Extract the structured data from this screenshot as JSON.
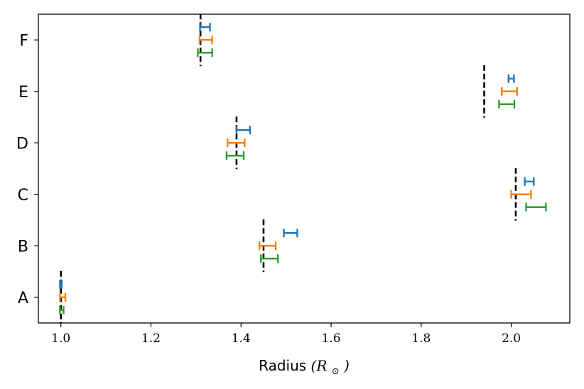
{
  "chart_data": {
    "type": "errorbar",
    "title": "",
    "xlabel": "Radius",
    "xlabel_math": "(R",
    "xlabel_sub": "⊙",
    "xlabel_close": ")",
    "ylabel": "",
    "xlim": [
      0.95,
      2.13
    ],
    "xticks": [
      1.0,
      1.2,
      1.4,
      1.6,
      1.8,
      2.0
    ],
    "xtick_labels": [
      "1.0",
      "1.2",
      "1.4",
      "1.6",
      "1.8",
      "2.0"
    ],
    "categories": [
      "A",
      "B",
      "C",
      "D",
      "E",
      "F"
    ],
    "grid": false,
    "legend": "none",
    "series": [
      {
        "color": "#1f77b4",
        "values": [
          {
            "category": "A",
            "x": 1.0,
            "err": 0.002
          },
          {
            "category": "B",
            "x": 1.51,
            "err": 0.015
          },
          {
            "category": "C",
            "x": 2.04,
            "err": 0.01
          },
          {
            "category": "D",
            "x": 1.405,
            "err": 0.015
          },
          {
            "category": "E",
            "x": 2.0,
            "err": 0.006
          },
          {
            "category": "F",
            "x": 1.32,
            "err": 0.011
          }
        ]
      },
      {
        "color": "#ff7f0e",
        "values": [
          {
            "category": "A",
            "x": 1.004,
            "err": 0.006
          },
          {
            "category": "B",
            "x": 1.459,
            "err": 0.018
          },
          {
            "category": "C",
            "x": 2.022,
            "err": 0.022
          },
          {
            "category": "D",
            "x": 1.389,
            "err": 0.019
          },
          {
            "category": "E",
            "x": 1.996,
            "err": 0.017
          },
          {
            "category": "F",
            "x": 1.322,
            "err": 0.014
          }
        ]
      },
      {
        "color": "#2ca02c",
        "values": [
          {
            "category": "A",
            "x": 1.002,
            "err": 0.004
          },
          {
            "category": "B",
            "x": 1.463,
            "err": 0.019
          },
          {
            "category": "C",
            "x": 2.055,
            "err": 0.022
          },
          {
            "category": "D",
            "x": 1.387,
            "err": 0.019
          },
          {
            "category": "E",
            "x": 1.99,
            "err": 0.017
          },
          {
            "category": "F",
            "x": 1.32,
            "err": 0.016
          }
        ]
      }
    ],
    "reference": {
      "color": "#000000",
      "style": "dashed",
      "values": [
        {
          "category": "A",
          "x": 1.0
        },
        {
          "category": "B",
          "x": 1.45
        },
        {
          "category": "C",
          "x": 2.01
        },
        {
          "category": "D",
          "x": 1.39
        },
        {
          "category": "E",
          "x": 1.94
        },
        {
          "category": "F",
          "x": 1.31
        }
      ]
    }
  }
}
